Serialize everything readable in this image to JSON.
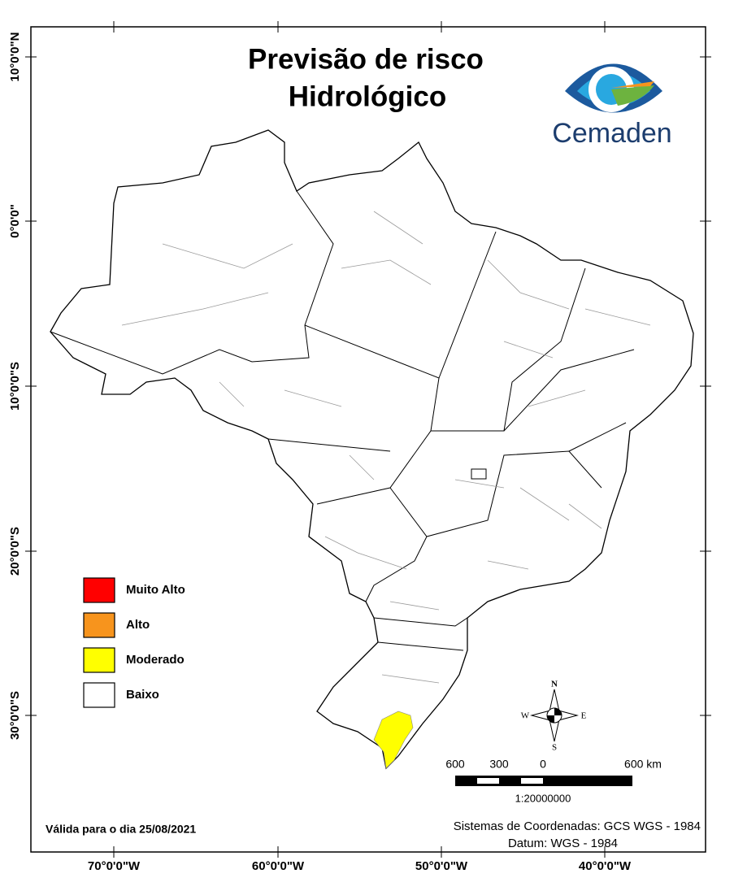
{
  "map": {
    "title": [
      "Previsão de risco",
      "Hidrológico"
    ],
    "logo": "Cemaden",
    "legend": [
      {
        "label": "Muito Alto",
        "color": "#ff0000"
      },
      {
        "label": "Alto",
        "color": "#f7941d"
      },
      {
        "label": "Moderado",
        "color": "#ffff00"
      },
      {
        "label": "Baixo",
        "color": "#ffffff"
      }
    ],
    "validity": "Válida para o dia 25/08/2021",
    "coordinate_system": "Sistemas de Coordenadas: GCS WGS - 1984",
    "datum": "Datum: WGS - 1984",
    "scale_labels": [
      "600",
      "300",
      "0",
      "600 km"
    ],
    "scale_ratio": "1:20000000",
    "compass": {
      "n": "N",
      "s": "S",
      "e": "E",
      "w": "W"
    },
    "longitude_labels": [
      "70°0'0\"W",
      "60°0'0\"W",
      "50°0'0\"W",
      "40°0'0\"W"
    ],
    "latitude_labels": [
      "10°0'0\"N",
      "0°0'0\"",
      "10°0'0\"S",
      "20°0'0\"S",
      "30°0'0\"S"
    ]
  }
}
